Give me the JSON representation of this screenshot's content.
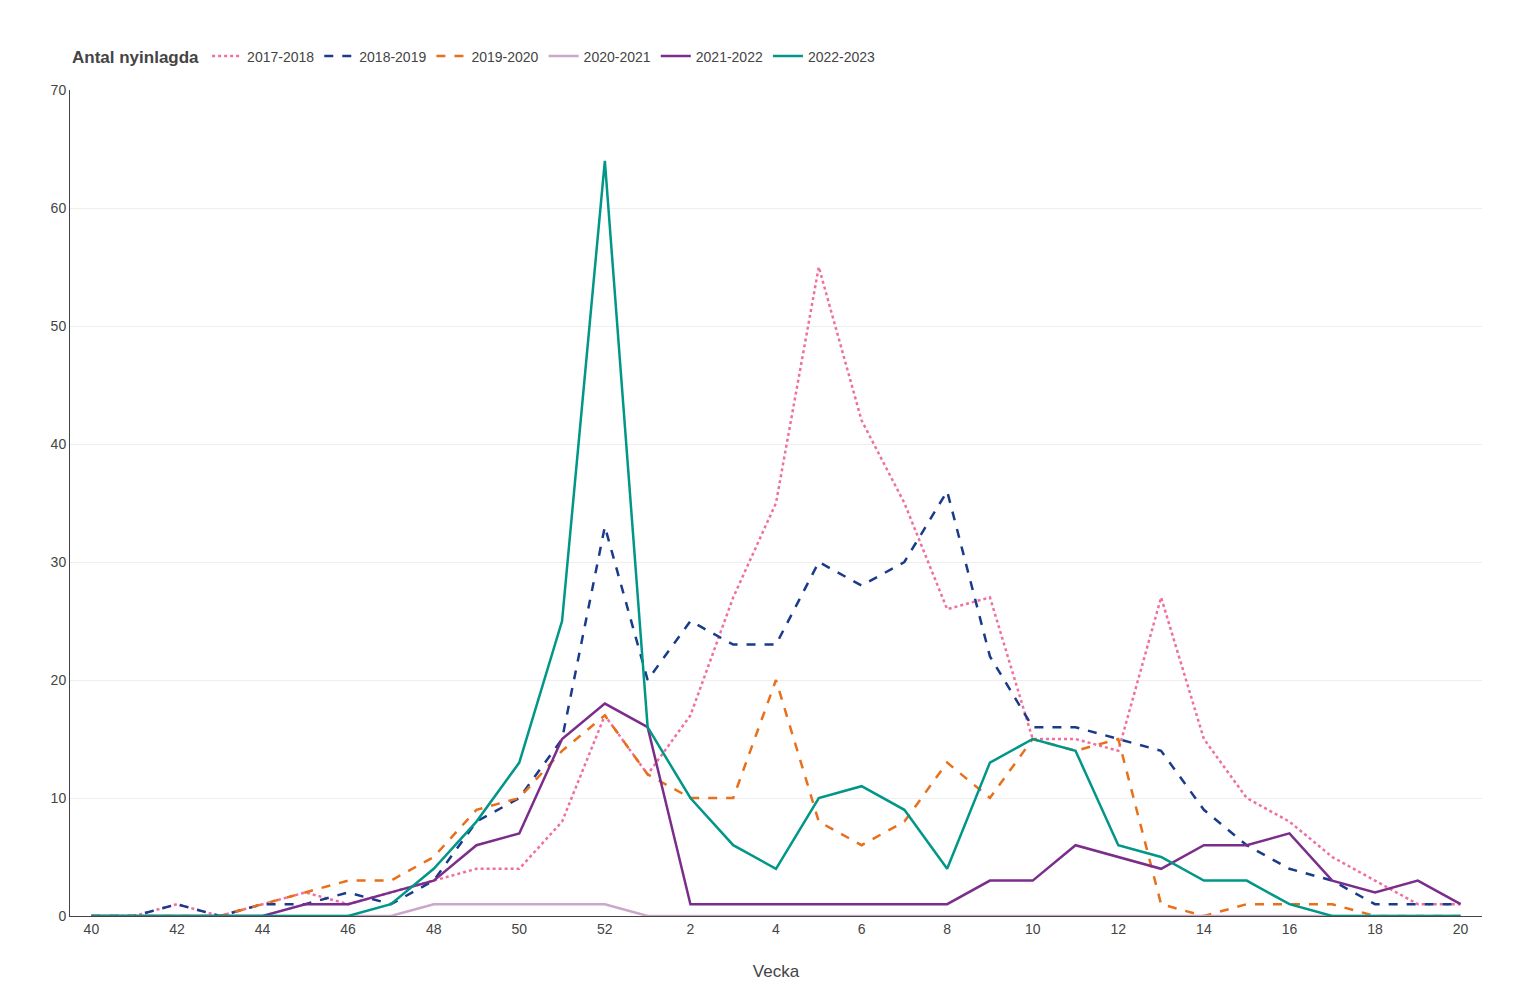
{
  "chart_data": {
    "type": "line",
    "legend_title": "Antal nyinlagda",
    "xlabel": "Vecka",
    "categories": [
      "40",
      null,
      "42",
      null,
      "44",
      null,
      "46",
      null,
      "48",
      null,
      "50",
      null,
      "52",
      null,
      "2",
      null,
      "4",
      null,
      "6",
      null,
      "8",
      null,
      "10",
      null,
      "12",
      null,
      "14",
      null,
      "16",
      null,
      "18",
      null,
      "20"
    ],
    "ylim": [
      0,
      70
    ],
    "yticks": [
      0,
      10,
      20,
      30,
      40,
      50,
      60,
      70
    ],
    "grid": true,
    "legend": "upper left",
    "series": [
      {
        "name": "2017-2018",
        "color": "#f06fa0",
        "line_style": "dotted",
        "values": [
          0,
          0,
          1,
          0,
          1,
          2,
          1,
          2,
          3,
          4,
          4,
          8,
          17,
          12,
          17,
          27,
          35,
          55,
          42,
          35,
          26,
          27,
          15,
          15,
          14,
          27,
          15,
          10,
          8,
          5,
          3,
          1,
          1
        ]
      },
      {
        "name": "2018-2019",
        "color": "#1a3a8a",
        "line_style": "dashed",
        "values": [
          0,
          0,
          1,
          0,
          1,
          1,
          2,
          1,
          3,
          8,
          10,
          15,
          33,
          20,
          25,
          23,
          23,
          30,
          28,
          30,
          36,
          22,
          16,
          16,
          15,
          14,
          9,
          6,
          4,
          3,
          1,
          1,
          1
        ]
      },
      {
        "name": "2019-2020",
        "color": "#e8701a",
        "line_style": "dashed",
        "values": [
          0,
          0,
          0,
          0,
          1,
          2,
          3,
          3,
          5,
          9,
          10,
          14,
          17,
          12,
          10,
          10,
          20,
          8,
          6,
          8,
          13,
          10,
          15,
          14,
          15,
          1,
          0,
          1,
          1,
          1,
          0,
          0,
          0
        ]
      },
      {
        "name": "2020-2021",
        "color": "#c9a8c8",
        "line_style": "solid",
        "values": [
          0,
          0,
          0,
          0,
          0,
          0,
          0,
          0,
          1,
          1,
          1,
          1,
          1,
          0,
          0,
          0,
          0,
          0,
          0,
          0,
          0,
          0,
          0,
          0,
          0,
          0,
          0,
          0,
          0,
          0,
          0,
          0,
          0
        ]
      },
      {
        "name": "2021-2022",
        "color": "#7b2d8b",
        "line_style": "solid",
        "values": [
          0,
          0,
          0,
          0,
          0,
          1,
          1,
          2,
          3,
          6,
          7,
          15,
          18,
          16,
          1,
          1,
          1,
          1,
          1,
          1,
          1,
          3,
          3,
          6,
          5,
          4,
          6,
          6,
          7,
          3,
          2,
          3,
          1
        ]
      },
      {
        "name": "2022-2023",
        "color": "#009688",
        "line_style": "solid",
        "values": [
          0,
          0,
          0,
          0,
          0,
          0,
          0,
          1,
          4,
          8,
          13,
          25,
          64,
          16,
          10,
          6,
          4,
          10,
          11,
          9,
          4,
          13,
          15,
          14,
          6,
          5,
          3,
          3,
          1,
          0,
          0,
          0,
          0
        ]
      }
    ]
  }
}
